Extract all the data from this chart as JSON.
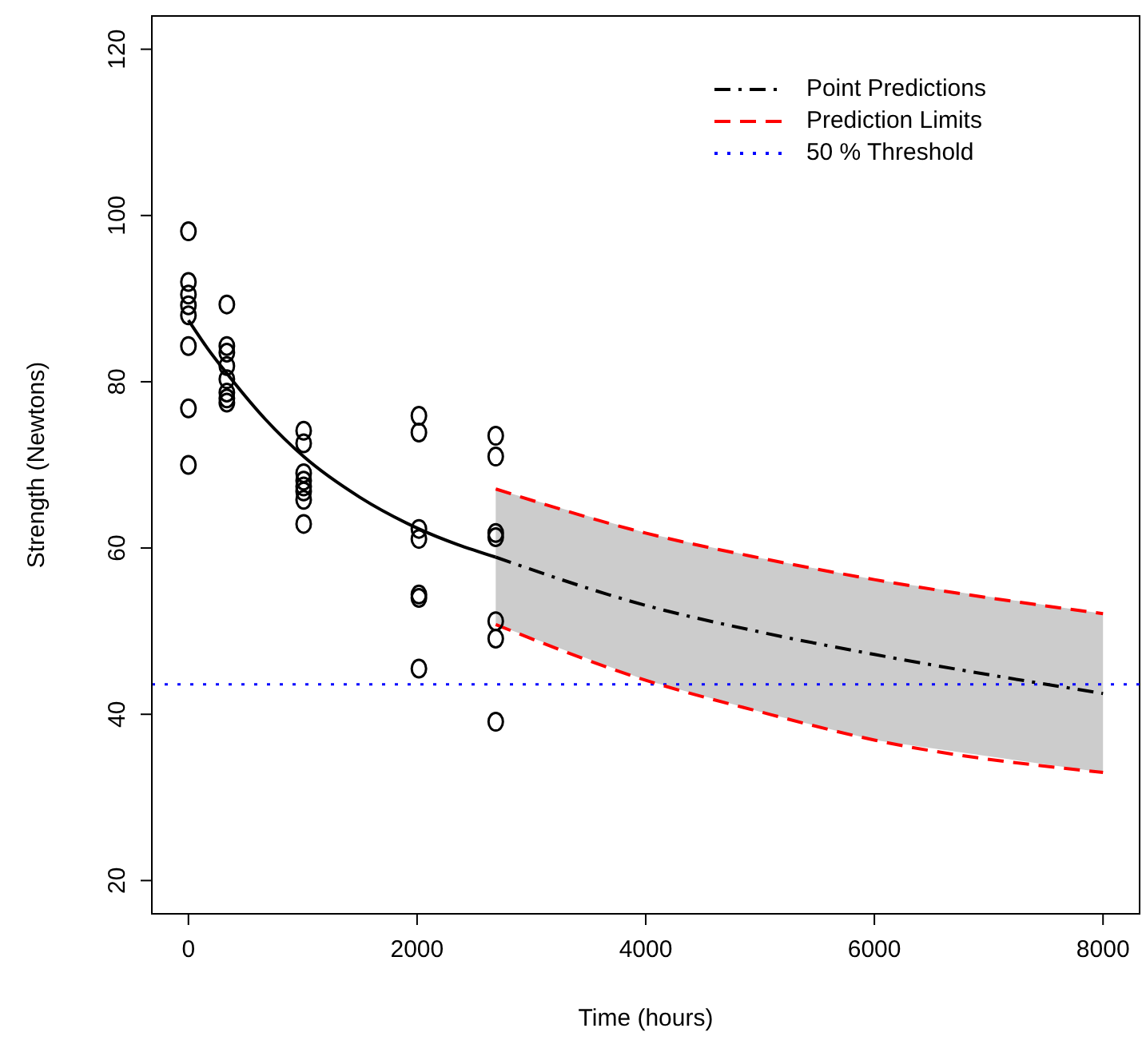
{
  "chart_data": {
    "type": "scatter",
    "xlabel": "Time (hours)",
    "ylabel": "Strength (Newtons)",
    "xlim": [
      -320,
      8320
    ],
    "xticks": [
      0,
      2000,
      4000,
      6000,
      8000
    ],
    "ylim": [
      16,
      124
    ],
    "yticks": [
      20,
      40,
      60,
      80,
      100,
      120
    ],
    "legend": "top right",
    "grid": false,
    "series": [
      {
        "marker": "circle",
        "color": "#000000",
        "x": [
          0,
          0,
          0,
          0,
          0,
          0,
          0,
          0,
          336,
          336,
          336,
          336,
          336,
          336,
          336,
          336,
          1008,
          1008,
          1008,
          1008,
          1008,
          1008,
          1008,
          1008,
          2016,
          2016,
          2016,
          2016,
          2016,
          2016,
          2016,
          2688,
          2688,
          2688,
          2688,
          2688,
          2688,
          2688
        ],
        "values": [
          98.1,
          92.0,
          90.5,
          89.2,
          88.0,
          84.3,
          76.8,
          70.0,
          89.3,
          84.3,
          83.5,
          81.9,
          80.3,
          78.7,
          78.0,
          77.5,
          74.1,
          72.6,
          69.0,
          68.1,
          67.4,
          66.8,
          65.8,
          62.9,
          75.9,
          73.9,
          62.3,
          61.1,
          54.4,
          54.0,
          45.5,
          73.5,
          71.0,
          61.8,
          61.3,
          51.2,
          49.1,
          39.1
        ]
      },
      {
        "type": "line",
        "line_style": "solid",
        "color": "#000000",
        "x": [
          0,
          168,
          336,
          672,
          1008,
          1500,
          2016,
          2688
        ],
        "values": [
          87.4,
          84.0,
          81.0,
          75.5,
          71.0,
          66.1,
          62.3,
          58.9
        ]
      },
      {
        "name": "Point Predictions",
        "type": "line",
        "line_style": "dashdot",
        "color": "#000000",
        "x": [
          2688,
          4000,
          5000,
          6000,
          8000
        ],
        "values": [
          58.9,
          53.1,
          49.9,
          47.2,
          42.5
        ],
        "lower": [
          50.8,
          44.1,
          40.3,
          36.9,
          33.0
        ],
        "upper": [
          67.1,
          61.8,
          58.8,
          56.2,
          52.1
        ]
      },
      {
        "name": "Prediction Limits",
        "type": "line",
        "line_style": "dashed",
        "color": "#ff0000",
        "x": [
          2688,
          4000,
          5000,
          6000,
          8000
        ],
        "values": [
          67.1,
          61.8,
          58.8,
          56.2,
          52.1
        ]
      },
      {
        "type": "line",
        "line_style": "dashed",
        "color": "#ff0000",
        "x": [
          2688,
          4000,
          5000,
          6000,
          8000
        ],
        "values": [
          50.8,
          44.1,
          40.3,
          36.9,
          33.0
        ]
      }
    ],
    "ref_lines": [
      {
        "axis": "y",
        "value": 43.6,
        "label": "50 % Threshold",
        "color": "#0000ff",
        "line_style": "dotted"
      }
    ]
  }
}
